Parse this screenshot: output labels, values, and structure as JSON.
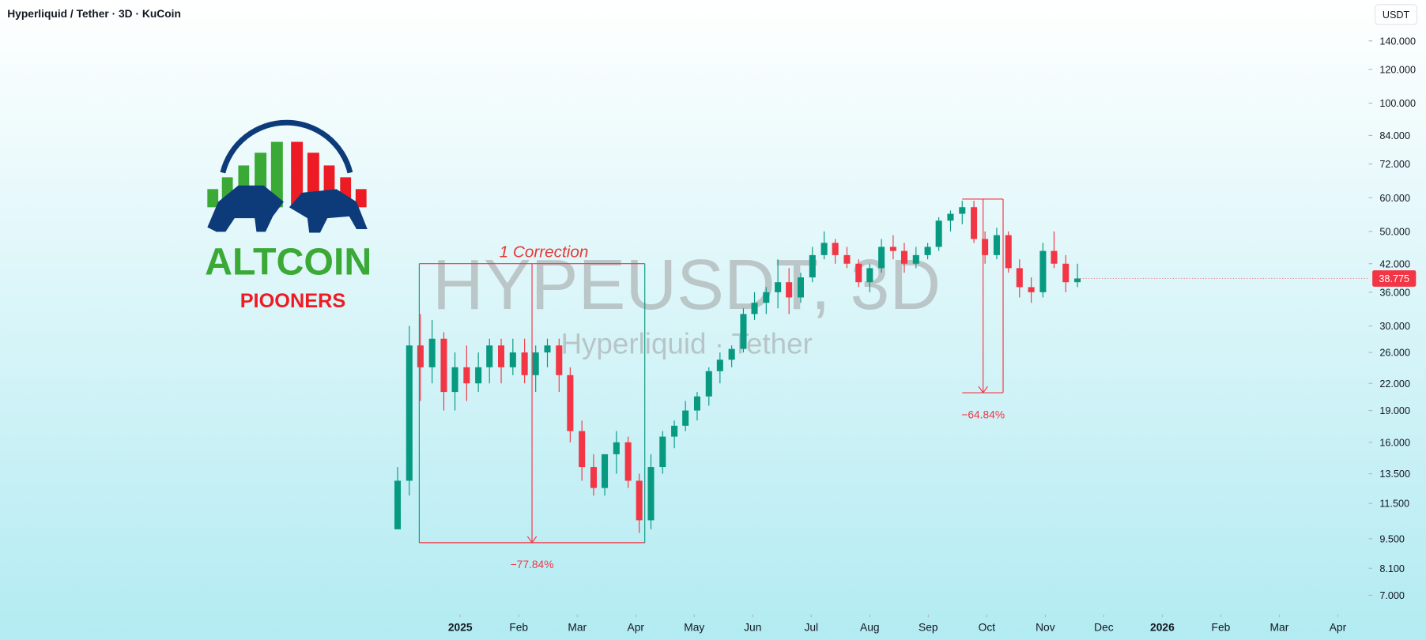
{
  "header": {
    "title": "Hyperliquid / Tether · 3D · KuCoin",
    "currency": "USDT"
  },
  "logo": {
    "name": "ALTCOIN",
    "subname": "PIOONERS"
  },
  "chart_data": {
    "type": "candlestick",
    "watermark": "HYPEUSDT, 3D",
    "watermark_subtitle": "Hyperliquid · Tether",
    "annotations": [
      "1 Correction",
      "−77.84%",
      "−64.84%"
    ],
    "up_color": "#089981",
    "down_color": "#f23645",
    "log_scale": true,
    "last_price": 38.775,
    "x": [
      -1.07,
      -0.87,
      -0.68,
      -0.48,
      -0.28,
      -0.09,
      0.11,
      0.31,
      0.5,
      0.7,
      0.9,
      1.1,
      1.29,
      1.49,
      1.69,
      1.88,
      2.08,
      2.28,
      2.47,
      2.67,
      2.87,
      3.06,
      3.26,
      3.46,
      3.66,
      3.85,
      4.05,
      4.25,
      4.44,
      4.64,
      4.84,
      5.03,
      5.23,
      5.43,
      5.62,
      5.82,
      6.02,
      6.22,
      6.41,
      6.61,
      6.81,
      7.0,
      7.2,
      7.4,
      7.59,
      7.79,
      7.99,
      8.18,
      8.38,
      8.58,
      8.78,
      8.97,
      9.17,
      9.37,
      9.56,
      9.76,
      9.96,
      10.15,
      10.35,
      10.55
    ],
    "open": [
      10,
      13,
      27,
      24,
      28,
      21,
      24,
      22,
      24,
      27,
      24,
      26,
      23,
      26,
      27,
      23,
      17,
      14,
      12.5,
      15,
      16,
      13,
      10.5,
      14,
      16.5,
      17.5,
      19,
      20.5,
      23.5,
      25,
      26.5,
      32,
      34,
      36,
      38,
      35,
      39,
      44,
      47,
      44,
      42,
      38,
      41,
      46,
      45,
      42,
      44,
      46,
      53,
      55,
      57,
      48,
      44,
      49,
      41,
      37,
      36,
      45,
      42,
      38
    ],
    "high": [
      14,
      30,
      32,
      31,
      29,
      26,
      27,
      26,
      28,
      28,
      28,
      28,
      27,
      28,
      28,
      24,
      18,
      15,
      15,
      17,
      16.5,
      13.5,
      15,
      17,
      18,
      20,
      21,
      24,
      26,
      27,
      33,
      36,
      37,
      43,
      41,
      40,
      46,
      50,
      48,
      46,
      43,
      42,
      48,
      49,
      47,
      46,
      47,
      54,
      56,
      59,
      59,
      50,
      51,
      50,
      43,
      39,
      47,
      50,
      44,
      42
    ],
    "low": [
      10,
      12,
      20,
      22,
      19,
      19,
      20,
      21,
      22,
      22,
      23,
      22,
      21,
      24,
      21,
      16,
      13,
      12,
      12,
      13.5,
      12.5,
      9.8,
      10,
      13.5,
      15.5,
      17,
      18,
      19.5,
      22,
      24,
      26,
      31,
      32,
      33,
      32,
      34,
      38,
      43,
      42,
      41,
      37,
      36,
      40,
      43,
      40,
      41,
      43,
      45,
      50,
      52,
      47,
      42,
      43,
      40,
      35,
      34,
      35,
      41,
      36,
      37
    ],
    "close": [
      13,
      27,
      24,
      28,
      21,
      24,
      22,
      24,
      27,
      24,
      26,
      23,
      26,
      27,
      23,
      17,
      14,
      12.5,
      15,
      16,
      13,
      10.5,
      14,
      16.5,
      17.5,
      19,
      20.5,
      23.5,
      25,
      26.5,
      32,
      34,
      36,
      38,
      35,
      39,
      44,
      47,
      44,
      42,
      38,
      41,
      46,
      45,
      42,
      44,
      46,
      53,
      55,
      57,
      48,
      44,
      49,
      41,
      37,
      36,
      45,
      42,
      38,
      38.775
    ],
    "xlim": [
      -7.866,
      15.45
    ],
    "xticks": [
      {
        "value": 0,
        "label": "2025"
      },
      {
        "value": 1,
        "label": "Feb"
      },
      {
        "value": 2,
        "label": "Mar"
      },
      {
        "value": 3,
        "label": "Apr"
      },
      {
        "value": 4,
        "label": "May"
      },
      {
        "value": 5,
        "label": "Jun"
      },
      {
        "value": 6,
        "label": "Jul"
      },
      {
        "value": 7,
        "label": "Aug"
      },
      {
        "value": 8,
        "label": "Sep"
      },
      {
        "value": 9,
        "label": "Oct"
      },
      {
        "value": 10,
        "label": "Nov"
      },
      {
        "value": 11,
        "label": "Dec"
      },
      {
        "value": 12,
        "label": "2026"
      },
      {
        "value": 13,
        "label": "Feb"
      },
      {
        "value": 14,
        "label": "Mar"
      },
      {
        "value": 15,
        "label": "Apr"
      }
    ],
    "ylim": [
      6.34,
      174.6
    ],
    "yticks": [
      {
        "value": 140,
        "label": "140.000"
      },
      {
        "value": 120,
        "label": "120.000"
      },
      {
        "value": 100,
        "label": "100.000"
      },
      {
        "value": 84,
        "label": "84.000"
      },
      {
        "value": 72,
        "label": "72.000"
      },
      {
        "value": 60,
        "label": "60.000"
      },
      {
        "value": 50,
        "label": "50.000"
      },
      {
        "value": 42,
        "label": "42.000"
      },
      {
        "value": 36,
        "label": "36.000"
      },
      {
        "value": 30,
        "label": "30.000"
      },
      {
        "value": 26,
        "label": "26.000"
      },
      {
        "value": 22,
        "label": "22.000"
      },
      {
        "value": 19,
        "label": "19.000"
      },
      {
        "value": 16,
        "label": "16.000"
      },
      {
        "value": 13.5,
        "label": "13.500"
      },
      {
        "value": 11.5,
        "label": "11.500"
      },
      {
        "value": 9.5,
        "label": "9.500"
      },
      {
        "value": 8.1,
        "label": "8.100"
      },
      {
        "value": 7,
        "label": "7.000"
      }
    ]
  }
}
